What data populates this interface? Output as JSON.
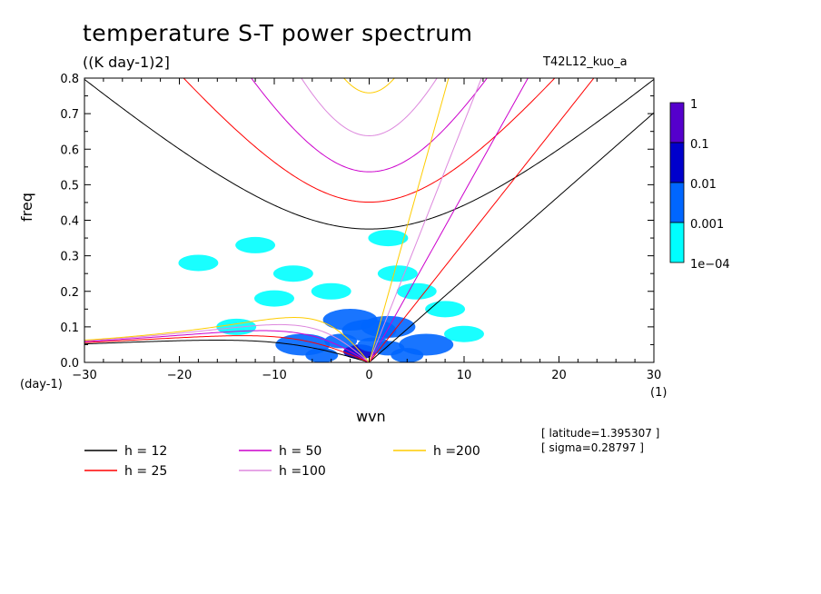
{
  "chart_data": {
    "type": "heatmap",
    "title": "temperature S-T power spectrum",
    "units_label": "((K day-1)2]",
    "run_name": "T42L12_kuo_a",
    "xlabel": "wvn",
    "xunit": "(1)",
    "ylabel": "freq",
    "yunit": "(day-1)",
    "xlim": [
      -30,
      30
    ],
    "ylim": [
      0,
      0.8
    ],
    "x_ticks": [
      -30,
      -20,
      -10,
      0,
      10,
      20,
      30
    ],
    "x_tick_labels": [
      "−30",
      "−20",
      "−10",
      "0",
      "10",
      "20",
      "30"
    ],
    "y_ticks": [
      0,
      0.1,
      0.2,
      0.3,
      0.4,
      0.5,
      0.6,
      0.7,
      0.8
    ],
    "y_tick_labels": [
      "0.0",
      "0.1",
      "0.2",
      "0.3",
      "0.4",
      "0.5",
      "0.6",
      "0.7",
      "0.8"
    ],
    "colorbar": {
      "levels": [
        "1",
        "0.1",
        "0.01",
        "0.001",
        "1e−04"
      ],
      "colors": [
        "#5500cc",
        "#0000cc",
        "#0066ff",
        "#00ffff"
      ]
    },
    "series": [
      {
        "name": "h = 12",
        "h": 12,
        "color": "#000000"
      },
      {
        "name": "h = 25",
        "h": 25,
        "color": "#ff0000"
      },
      {
        "name": "h = 50",
        "h": 50,
        "color": "#cc00cc"
      },
      {
        "name": "h =100",
        "h": 100,
        "color": "#dd88dd"
      },
      {
        "name": "h =200",
        "h": 200,
        "color": "#ffcc00"
      }
    ],
    "info": {
      "latitude": "[ latitude=1.395307 ]",
      "sigma": "[ sigma=0.28797 ]"
    },
    "spectrum_blobs": [
      {
        "x": -1,
        "y": 0.03,
        "v": 0.1
      },
      {
        "x": 0.5,
        "y": 0.05,
        "v": 0.01
      },
      {
        "x": -3,
        "y": 0.06,
        "v": 0.01
      },
      {
        "x": 2,
        "y": 0.04,
        "v": 0.01
      },
      {
        "x": -5,
        "y": 0.02,
        "v": 0.01
      },
      {
        "x": 4,
        "y": 0.02,
        "v": 0.01
      },
      {
        "x": 0,
        "y": 0.09,
        "v": 0.001
      },
      {
        "x": -7,
        "y": 0.05,
        "v": 0.001
      },
      {
        "x": 6,
        "y": 0.05,
        "v": 0.001
      },
      {
        "x": -2,
        "y": 0.12,
        "v": 0.001
      },
      {
        "x": 2,
        "y": 0.1,
        "v": 0.001
      },
      {
        "x": -4,
        "y": 0.2,
        "v": 0.0001
      },
      {
        "x": 3,
        "y": 0.25,
        "v": 0.0001
      },
      {
        "x": -10,
        "y": 0.18,
        "v": 0.0001
      },
      {
        "x": 10,
        "y": 0.08,
        "v": 0.0001
      },
      {
        "x": -14,
        "y": 0.1,
        "v": 0.0001
      },
      {
        "x": -18,
        "y": 0.28,
        "v": 0.0001
      },
      {
        "x": -12,
        "y": 0.33,
        "v": 0.0001
      },
      {
        "x": 2,
        "y": 0.35,
        "v": 0.0001
      },
      {
        "x": -8,
        "y": 0.25,
        "v": 0.0001
      },
      {
        "x": 8,
        "y": 0.15,
        "v": 0.0001
      },
      {
        "x": 5,
        "y": 0.2,
        "v": 0.0001
      }
    ]
  }
}
